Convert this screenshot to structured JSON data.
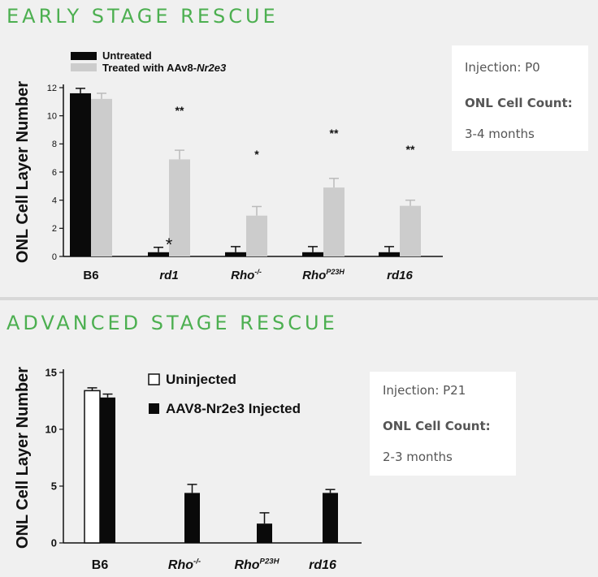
{
  "panel1": {
    "title": "EARLY STAGE RESCUE",
    "info": {
      "injection_label": "Injection",
      "injection_value": "P0",
      "count_label": "ONL Cell Count:",
      "count_value": "3-4 months"
    },
    "chart_data": {
      "type": "bar",
      "ylabel": "ONL Cell Layer Number",
      "ylim": [
        0,
        12
      ],
      "yticks": [
        0,
        2,
        4,
        6,
        8,
        10,
        12
      ],
      "categories": [
        "B6",
        "rd1",
        "Rho-/-",
        "RhoP23H",
        "rd16"
      ],
      "category_display": [
        {
          "base": "B6",
          "sup": "",
          "italic": false
        },
        {
          "base": "rd1",
          "sup": "",
          "italic": true
        },
        {
          "base": "Rho",
          "sup": "-/-",
          "italic": true
        },
        {
          "base": "Rho",
          "sup": "P23H",
          "italic": true
        },
        {
          "base": "rd16",
          "sup": "",
          "italic": true
        }
      ],
      "series": [
        {
          "name": "Untreated",
          "color": "#0a0a0a",
          "values": [
            11.6,
            0.3,
            0.3,
            0.3,
            0.3
          ],
          "errors": [
            0.35,
            0.35,
            0.4,
            0.4,
            0.4
          ]
        },
        {
          "name": "Treated with AAv8-Nr2e3",
          "color": "#cccccc",
          "values": [
            11.2,
            6.9,
            2.9,
            4.9,
            3.6
          ],
          "errors": [
            0.4,
            0.65,
            0.65,
            0.65,
            0.4
          ]
        }
      ],
      "legend_prefix": "Treated with AAv8-",
      "legend_italic": "Nr2e3",
      "annotations": [
        "",
        "**",
        "*",
        "**",
        "**"
      ],
      "untreated_marks": [
        "",
        "*",
        "",
        "",
        ""
      ],
      "legend_position": "top-left"
    }
  },
  "panel2": {
    "title": "ADVANCED STAGE RESCUE",
    "info": {
      "injection_label": "Injection",
      "injection_value": "P21",
      "count_label": "ONL Cell Count:",
      "count_value": "2-3 months"
    },
    "chart_data": {
      "type": "bar",
      "ylabel": "ONL Cell Layer Number",
      "ylim": [
        0,
        15
      ],
      "yticks": [
        0,
        5,
        10,
        15
      ],
      "categories": [
        "B6",
        "Rho-/-",
        "RhoP23H",
        "rd16"
      ],
      "category_display": [
        {
          "base": "B6",
          "sup": "",
          "italic": false
        },
        {
          "base": "Rho",
          "sup": "-/-",
          "italic": true
        },
        {
          "base": "Rho",
          "sup": "P23H",
          "italic": true
        },
        {
          "base": "rd16",
          "sup": "",
          "italic": true
        }
      ],
      "series": [
        {
          "name": "Uninjected",
          "color": "#ffffff",
          "values": [
            13.4,
            null,
            null,
            null
          ],
          "errors": [
            0.25,
            null,
            null,
            null
          ]
        },
        {
          "name": "AAV8-Nr2e3 Injected",
          "color": "#0a0a0a",
          "values": [
            12.8,
            4.4,
            1.7,
            4.4
          ],
          "errors": [
            0.3,
            0.75,
            0.95,
            0.3
          ]
        }
      ],
      "legend_position": "top-center"
    }
  }
}
